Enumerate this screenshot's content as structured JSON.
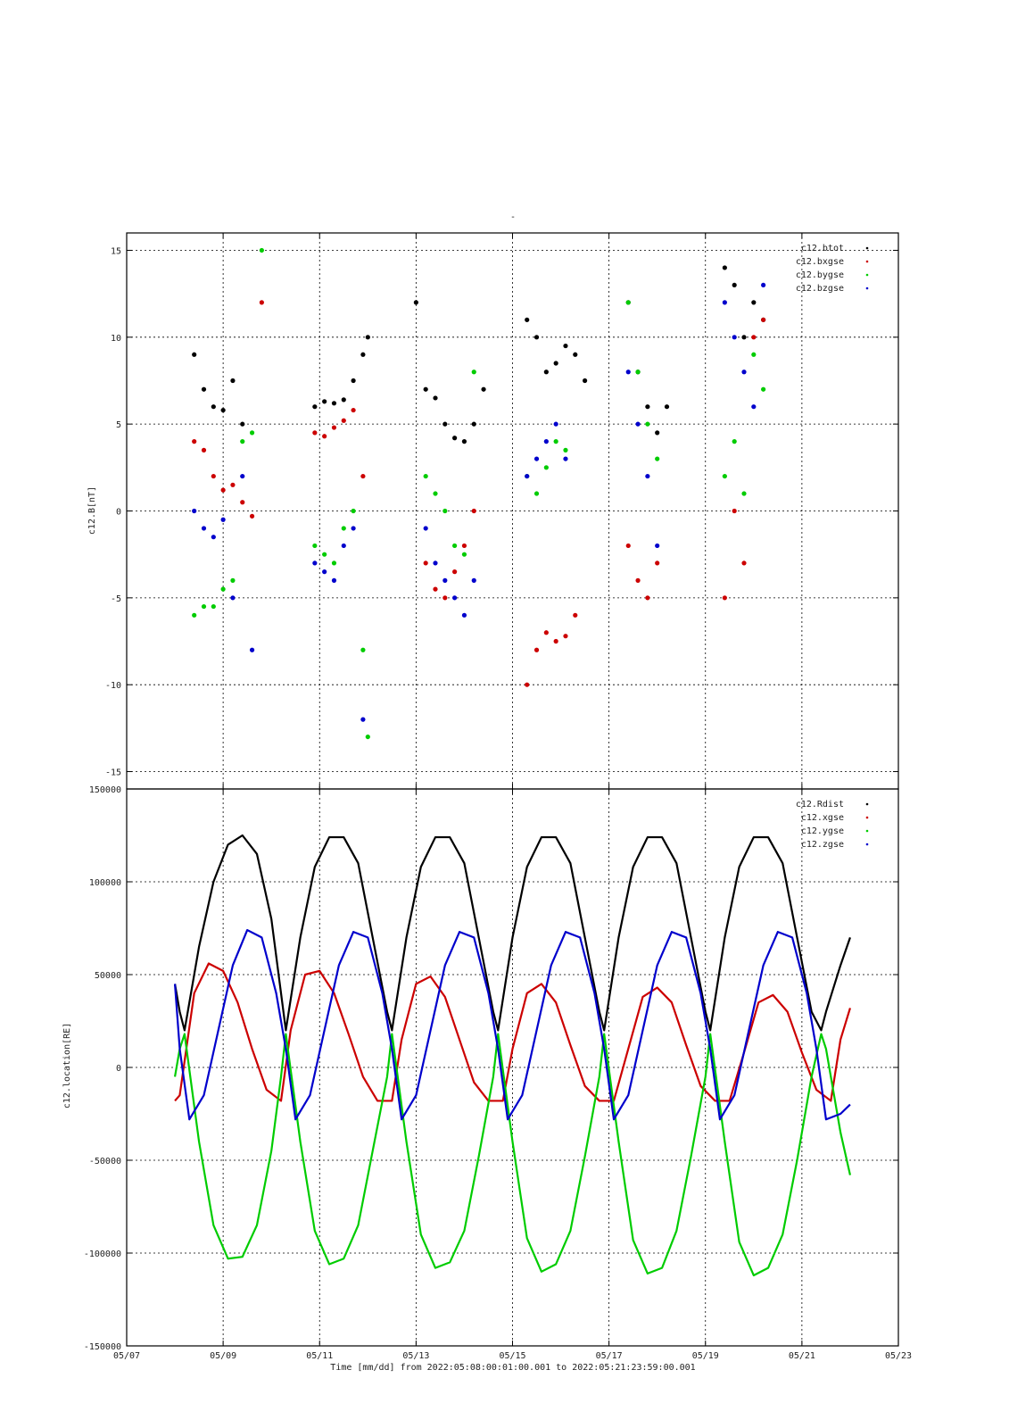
{
  "page": {
    "top_mark": "-",
    "footer_label": "Time [mm/dd]  from 2022:05:08:00:01:00.001  to  2022:05:21:23:59:00.001"
  },
  "colors": {
    "black": "#000000",
    "red": "#cc0000",
    "green": "#00cc00",
    "blue": "#0000cc"
  },
  "chart_data": [
    {
      "type": "scatter",
      "title": "",
      "ylabel": "c12.B[nT]",
      "xlabel": "",
      "xlim": [
        "05/07",
        "05/23"
      ],
      "ylim": [
        -16,
        16
      ],
      "yticks": [
        "15",
        "10",
        "5",
        "0",
        "-5",
        "-10",
        "-15"
      ],
      "ytick_values": [
        15,
        10,
        5,
        0,
        -5,
        -10,
        -15
      ],
      "grid": true,
      "legend_position": "top-right",
      "series": [
        {
          "name": "c12.btot",
          "color": "#000000",
          "x": [
            1.4,
            1.6,
            1.8,
            2.0,
            2.2,
            2.4,
            3.9,
            4.1,
            4.3,
            4.5,
            4.7,
            4.9,
            5.0,
            6.0,
            6.2,
            6.4,
            6.6,
            6.8,
            7.0,
            7.2,
            7.4,
            8.3,
            8.5,
            8.7,
            8.9,
            9.1,
            9.3,
            9.5,
            10.4,
            10.6,
            10.8,
            11.0,
            11.2,
            12.4,
            12.6,
            12.8,
            13.0,
            13.2
          ],
          "y": [
            9.0,
            7.0,
            6.0,
            5.8,
            7.5,
            5.0,
            6.0,
            6.3,
            6.2,
            6.4,
            7.5,
            9.0,
            10.0,
            12.0,
            7.0,
            6.5,
            5.0,
            4.2,
            4.0,
            5.0,
            7.0,
            11.0,
            10.0,
            8.0,
            8.5,
            9.5,
            9.0,
            7.5,
            12.0,
            8.0,
            6.0,
            4.5,
            6.0,
            14.0,
            13.0,
            10.0,
            12.0,
            11.0
          ]
        },
        {
          "name": "c12.bxgse",
          "color": "#cc0000",
          "x": [
            1.4,
            1.6,
            1.8,
            2.0,
            2.2,
            2.4,
            2.6,
            2.8,
            3.9,
            4.1,
            4.3,
            4.5,
            4.7,
            4.9,
            6.2,
            6.4,
            6.6,
            6.8,
            7.0,
            7.2,
            8.3,
            8.5,
            8.7,
            8.9,
            9.1,
            9.3,
            10.4,
            10.6,
            10.8,
            11.0,
            12.4,
            12.6,
            12.8,
            13.0,
            13.2
          ],
          "y": [
            4.0,
            3.5,
            2.0,
            1.2,
            1.5,
            0.5,
            -0.3,
            12.0,
            4.5,
            4.3,
            4.8,
            5.2,
            5.8,
            2.0,
            -3.0,
            -4.5,
            -5.0,
            -3.5,
            -2.0,
            0.0,
            -10.0,
            -8.0,
            -7.0,
            -7.5,
            -7.2,
            -6.0,
            -2.0,
            -4.0,
            -5.0,
            -3.0,
            -5.0,
            0.0,
            -3.0,
            10.0,
            11.0
          ]
        },
        {
          "name": "c12.bygse",
          "color": "#00cc00",
          "x": [
            1.4,
            1.6,
            1.8,
            2.0,
            2.2,
            2.4,
            2.6,
            2.8,
            3.9,
            4.1,
            4.3,
            4.5,
            4.7,
            4.9,
            5.0,
            6.2,
            6.4,
            6.6,
            6.8,
            7.0,
            7.2,
            8.3,
            8.5,
            8.7,
            8.9,
            9.1,
            10.4,
            10.6,
            10.8,
            11.0,
            12.4,
            12.6,
            12.8,
            13.0,
            13.2
          ],
          "y": [
            -6.0,
            -5.5,
            -5.5,
            -4.5,
            -4.0,
            4.0,
            4.5,
            15.0,
            -2.0,
            -2.5,
            -3.0,
            -1.0,
            0.0,
            -8.0,
            -13.0,
            2.0,
            1.0,
            0.0,
            -2.0,
            -2.5,
            8.0,
            2.0,
            1.0,
            2.5,
            4.0,
            3.5,
            12.0,
            8.0,
            5.0,
            3.0,
            2.0,
            4.0,
            1.0,
            9.0,
            7.0
          ]
        },
        {
          "name": "c12.bzgse",
          "color": "#0000cc",
          "x": [
            1.4,
            1.6,
            1.8,
            2.0,
            2.2,
            2.4,
            2.6,
            3.9,
            4.1,
            4.3,
            4.5,
            4.7,
            4.9,
            6.2,
            6.4,
            6.6,
            6.8,
            7.0,
            7.2,
            8.3,
            8.5,
            8.7,
            8.9,
            9.1,
            10.4,
            10.6,
            10.8,
            11.0,
            12.4,
            12.6,
            12.8,
            13.0,
            13.2
          ],
          "y": [
            0.0,
            -1.0,
            -1.5,
            -0.5,
            -5.0,
            2.0,
            -8.0,
            -3.0,
            -3.5,
            -4.0,
            -2.0,
            -1.0,
            -12.0,
            -1.0,
            -3.0,
            -4.0,
            -5.0,
            -6.0,
            -4.0,
            2.0,
            3.0,
            4.0,
            5.0,
            3.0,
            8.0,
            5.0,
            2.0,
            -2.0,
            12.0,
            10.0,
            8.0,
            6.0,
            13.0
          ]
        }
      ]
    },
    {
      "type": "line",
      "title": "",
      "ylabel": "c12.location[RE]",
      "xlabel": "Time [mm/dd]  from 2022:05:08:00:01:00.001  to  2022:05:21:23:59:00.001",
      "xlim": [
        "05/07",
        "05/23"
      ],
      "xticks": [
        "05/07",
        "05/09",
        "05/11",
        "05/13",
        "05/15",
        "05/17",
        "05/19",
        "05/21",
        "05/23"
      ],
      "ylim": [
        -150000,
        150000
      ],
      "yticks": [
        "150000",
        "100000",
        "50000",
        "0",
        "-50000",
        "-100000",
        "-150000"
      ],
      "ytick_values": [
        150000,
        100000,
        50000,
        0,
        -50000,
        -100000,
        -150000
      ],
      "grid": true,
      "legend_position": "top-right",
      "x_range_days": [
        1.0,
        15.0
      ],
      "series": [
        {
          "name": "c12.Rdist",
          "color": "#000000",
          "x": [
            1.0,
            1.1,
            1.2,
            1.5,
            1.8,
            2.1,
            2.4,
            2.7,
            3.0,
            3.2,
            3.3,
            3.6,
            3.9,
            4.2,
            4.5,
            4.8,
            5.1,
            5.4,
            5.5,
            5.8,
            6.1,
            6.4,
            6.7,
            7.0,
            7.3,
            7.6,
            7.7,
            8.0,
            8.3,
            8.6,
            8.9,
            9.2,
            9.5,
            9.8,
            9.9,
            10.2,
            10.5,
            10.8,
            11.1,
            11.4,
            11.7,
            12.0,
            12.1,
            12.4,
            12.7,
            13.0,
            13.3,
            13.6,
            13.9,
            14.2,
            14.4,
            14.5,
            14.8,
            15.0
          ],
          "y": [
            45000,
            30000,
            20000,
            65000,
            100000,
            120000,
            125000,
            115000,
            80000,
            40000,
            20000,
            70000,
            108000,
            124000,
            124000,
            110000,
            70000,
            30000,
            20000,
            70000,
            108000,
            124000,
            124000,
            110000,
            70000,
            30000,
            20000,
            70000,
            108000,
            124000,
            124000,
            110000,
            70000,
            30000,
            20000,
            70000,
            108000,
            124000,
            124000,
            110000,
            70000,
            30000,
            20000,
            70000,
            108000,
            124000,
            124000,
            110000,
            70000,
            30000,
            20000,
            30000,
            55000,
            70000
          ]
        },
        {
          "name": "c12.xgse",
          "color": "#cc0000",
          "x": [
            1.0,
            1.1,
            1.4,
            1.7,
            2.0,
            2.3,
            2.6,
            2.9,
            3.2,
            3.4,
            3.7,
            4.0,
            4.3,
            4.6,
            4.9,
            5.2,
            5.5,
            5.7,
            6.0,
            6.3,
            6.6,
            6.9,
            7.2,
            7.5,
            7.8,
            8.0,
            8.3,
            8.6,
            8.9,
            9.2,
            9.5,
            9.8,
            10.1,
            10.4,
            10.7,
            11.0,
            11.3,
            11.6,
            11.9,
            12.2,
            12.5,
            12.8,
            13.1,
            13.4,
            13.7,
            14.0,
            14.3,
            14.6,
            14.8,
            15.0
          ],
          "y": [
            -18000,
            -15000,
            40000,
            56000,
            52000,
            35000,
            10000,
            -12000,
            -18000,
            20000,
            50000,
            52000,
            40000,
            18000,
            -5000,
            -18000,
            -18000,
            15000,
            45000,
            49000,
            38000,
            15000,
            -8000,
            -18000,
            -18000,
            10000,
            40000,
            45000,
            35000,
            12000,
            -10000,
            -18000,
            -18000,
            10000,
            38000,
            43000,
            35000,
            12000,
            -10000,
            -18000,
            -18000,
            8000,
            35000,
            39000,
            30000,
            8000,
            -12000,
            -18000,
            15000,
            32000
          ]
        },
        {
          "name": "c12.ygse",
          "color": "#00cc00",
          "x": [
            1.0,
            1.1,
            1.2,
            1.5,
            1.8,
            2.1,
            2.4,
            2.7,
            3.0,
            3.2,
            3.3,
            3.6,
            3.9,
            4.2,
            4.5,
            4.8,
            5.1,
            5.4,
            5.5,
            5.8,
            6.1,
            6.4,
            6.7,
            7.0,
            7.3,
            7.6,
            7.7,
            8.0,
            8.3,
            8.6,
            8.9,
            9.2,
            9.5,
            9.8,
            9.9,
            10.2,
            10.5,
            10.8,
            11.1,
            11.4,
            11.7,
            12.0,
            12.1,
            12.4,
            12.7,
            13.0,
            13.3,
            13.6,
            13.9,
            14.2,
            14.4,
            14.5,
            14.8,
            15.0
          ],
          "y": [
            -5000,
            10000,
            18000,
            -40000,
            -85000,
            -103000,
            -102000,
            -85000,
            -45000,
            -5000,
            18000,
            -40000,
            -88000,
            -106000,
            -103000,
            -85000,
            -45000,
            -5000,
            18000,
            -40000,
            -90000,
            -108000,
            -105000,
            -88000,
            -48000,
            -5000,
            18000,
            -40000,
            -92000,
            -110000,
            -106000,
            -88000,
            -48000,
            -5000,
            18000,
            -40000,
            -93000,
            -111000,
            -108000,
            -88000,
            -48000,
            -5000,
            18000,
            -40000,
            -94000,
            -112000,
            -108000,
            -90000,
            -50000,
            -5000,
            18000,
            10000,
            -35000,
            -58000
          ]
        },
        {
          "name": "c12.zgse",
          "color": "#0000cc",
          "x": [
            1.0,
            1.1,
            1.3,
            1.6,
            1.9,
            2.2,
            2.5,
            2.8,
            3.1,
            3.3,
            3.5,
            3.8,
            4.1,
            4.4,
            4.7,
            5.0,
            5.3,
            5.5,
            5.7,
            6.0,
            6.3,
            6.6,
            6.9,
            7.2,
            7.5,
            7.7,
            7.9,
            8.2,
            8.5,
            8.8,
            9.1,
            9.4,
            9.7,
            9.9,
            10.1,
            10.4,
            10.7,
            11.0,
            11.3,
            11.6,
            11.9,
            12.1,
            12.3,
            12.6,
            12.9,
            13.2,
            13.5,
            13.8,
            14.1,
            14.3,
            14.5,
            14.8,
            15.0
          ],
          "y": [
            45000,
            10000,
            -28000,
            -15000,
            20000,
            55000,
            74000,
            70000,
            40000,
            10000,
            -28000,
            -15000,
            20000,
            55000,
            73000,
            70000,
            40000,
            10000,
            -28000,
            -15000,
            20000,
            55000,
            73000,
            70000,
            40000,
            10000,
            -28000,
            -15000,
            20000,
            55000,
            73000,
            70000,
            40000,
            10000,
            -28000,
            -15000,
            20000,
            55000,
            73000,
            70000,
            40000,
            10000,
            -28000,
            -15000,
            20000,
            55000,
            73000,
            70000,
            40000,
            10000,
            -28000,
            -25000,
            -20000
          ]
        }
      ]
    }
  ]
}
